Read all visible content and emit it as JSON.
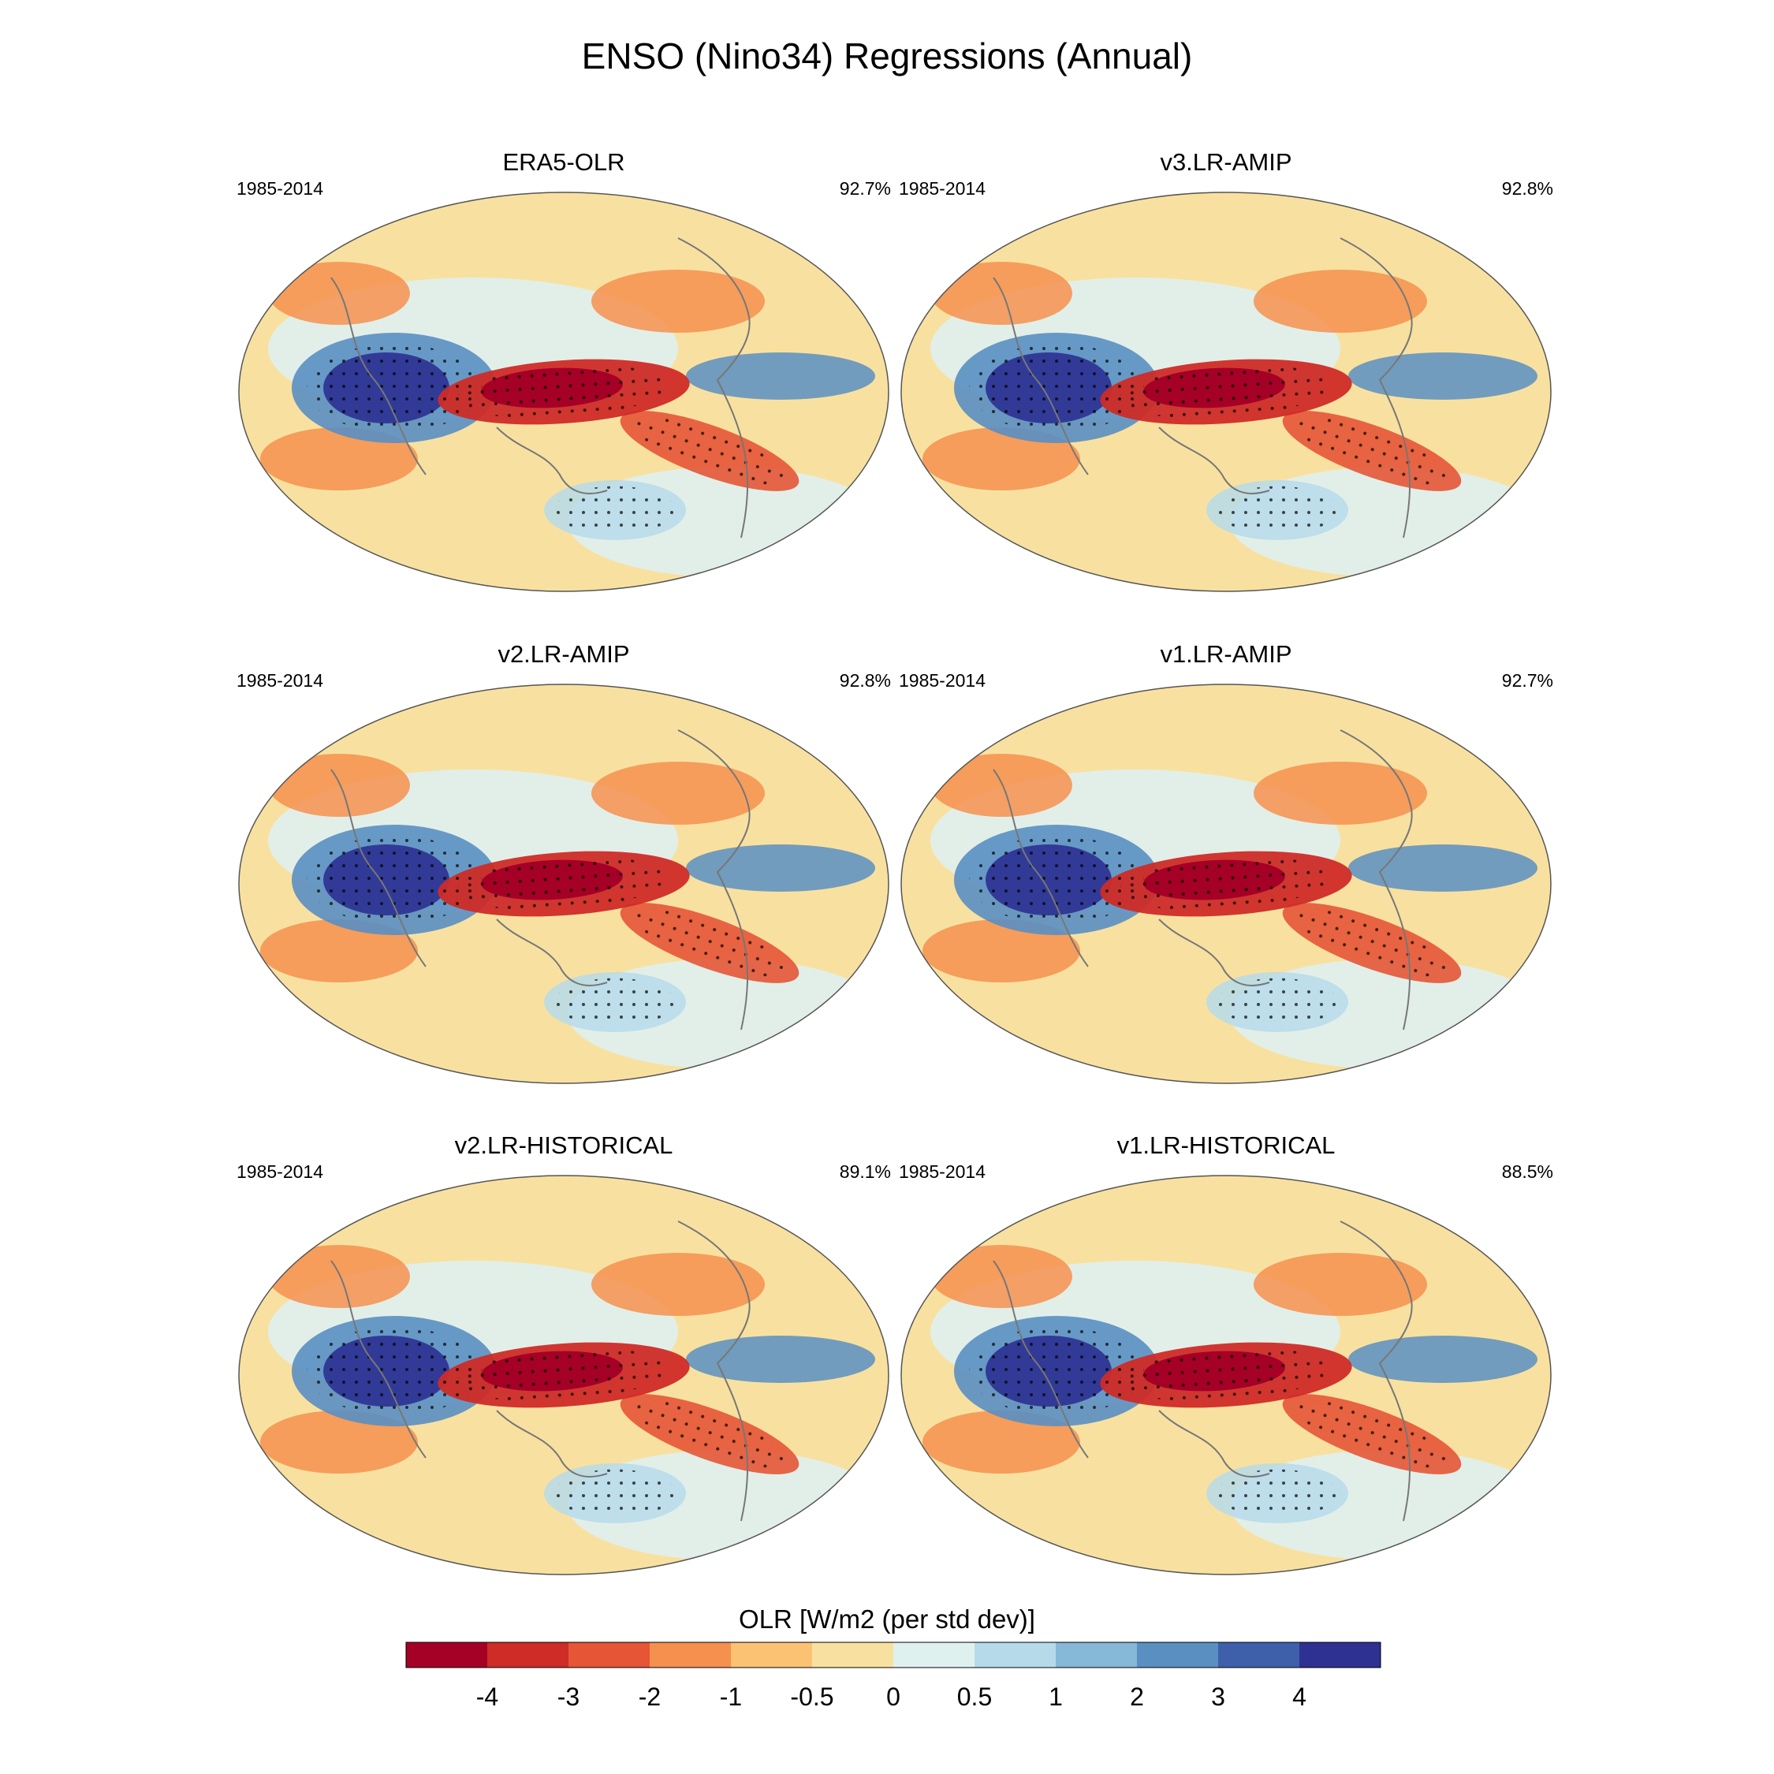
{
  "figure": {
    "title": "ENSO (Nino34) Regressions (Annual)"
  },
  "panels": [
    {
      "title": "ERA5-OLR",
      "period": "1985-2014",
      "percent": "92.7%"
    },
    {
      "title": "v3.LR-AMIP",
      "period": "1985-2014",
      "percent": "92.8%"
    },
    {
      "title": "v2.LR-AMIP",
      "period": "1985-2014",
      "percent": "92.8%"
    },
    {
      "title": "v1.LR-AMIP",
      "period": "1985-2014",
      "percent": "92.7%"
    },
    {
      "title": "v2.LR-HISTORICAL",
      "period": "1985-2014",
      "percent": "89.1%"
    },
    {
      "title": "v1.LR-HISTORICAL",
      "period": "1985-2014",
      "percent": "88.5%"
    }
  ],
  "colorbar": {
    "title": "OLR [W/m2 (per std dev)]",
    "levels": [
      "-4",
      "-3",
      "-2",
      "-1",
      "-0.5",
      "0",
      "0.5",
      "1",
      "2",
      "3",
      "4"
    ],
    "colors": [
      "#a50026",
      "#cf2b27",
      "#e65536",
      "#f6904f",
      "#fcc273",
      "#f8e1a0",
      "#dff1ef",
      "#b6daea",
      "#86b8d7",
      "#5a8fc2",
      "#3e60aa",
      "#2e3192"
    ]
  },
  "colors": {
    "neutral_positive": "#dff1ef",
    "neutral_negative": "#f8e1a0"
  }
}
